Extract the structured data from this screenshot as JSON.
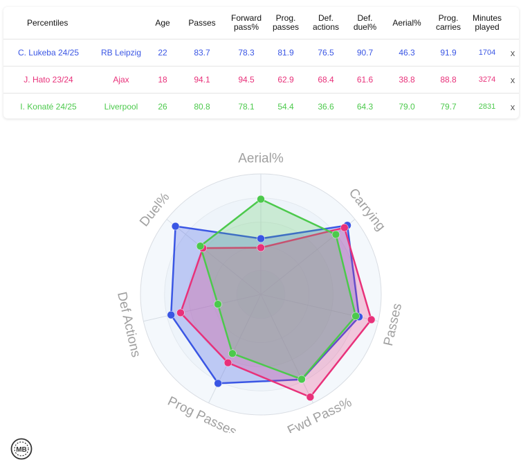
{
  "table": {
    "headers": [
      "Percentiles",
      "",
      "Age",
      "Passes",
      "Forward\npass%",
      "Prog.\npasses",
      "Def.\nactions",
      "Def.\nduel%",
      "Aerial%",
      "Prog.\ncarries",
      "Minutes\nplayed",
      ""
    ],
    "remove_label": "x",
    "rows": [
      {
        "player": "C. Lukeba 24/25",
        "team": "RB Leipzig",
        "values": [
          "22",
          "83.7",
          "78.3",
          "81.9",
          "76.5",
          "90.7",
          "46.3",
          "91.9",
          "1704"
        ],
        "color": "#3a56e4"
      },
      {
        "player": "J. Hato 23/24",
        "team": "Ajax",
        "values": [
          "18",
          "94.1",
          "94.5",
          "62.9",
          "68.4",
          "61.6",
          "38.8",
          "88.8",
          "3274"
        ],
        "color": "#e8317a"
      },
      {
        "player": "I. Konaté 24/25",
        "team": "Liverpool",
        "values": [
          "26",
          "80.8",
          "78.1",
          "54.4",
          "36.6",
          "64.3",
          "79.0",
          "79.7",
          "2831"
        ],
        "color": "#4cc94c"
      }
    ]
  },
  "chart_data": {
    "type": "radar",
    "axes": [
      "Aerial%",
      "Carrying",
      "Passes",
      "Fwd Pass%",
      "Prog Passes",
      "Def Actions",
      "Duel%"
    ],
    "range": [
      0,
      100
    ],
    "series": [
      {
        "name": "C. Lukeba 24/25",
        "values": [
          46.3,
          91.9,
          83.7,
          78.3,
          81.9,
          76.5,
          90.7
        ],
        "color": "#3a56e4"
      },
      {
        "name": "J. Hato 23/24",
        "values": [
          38.8,
          88.8,
          94.1,
          94.5,
          62.9,
          68.4,
          61.6
        ],
        "color": "#e8317a"
      },
      {
        "name": "I. Konaté 24/25",
        "values": [
          79.0,
          79.7,
          80.8,
          78.1,
          54.4,
          36.6,
          64.3
        ],
        "color": "#4cc94c"
      }
    ]
  },
  "logo": {
    "text": "MB"
  }
}
